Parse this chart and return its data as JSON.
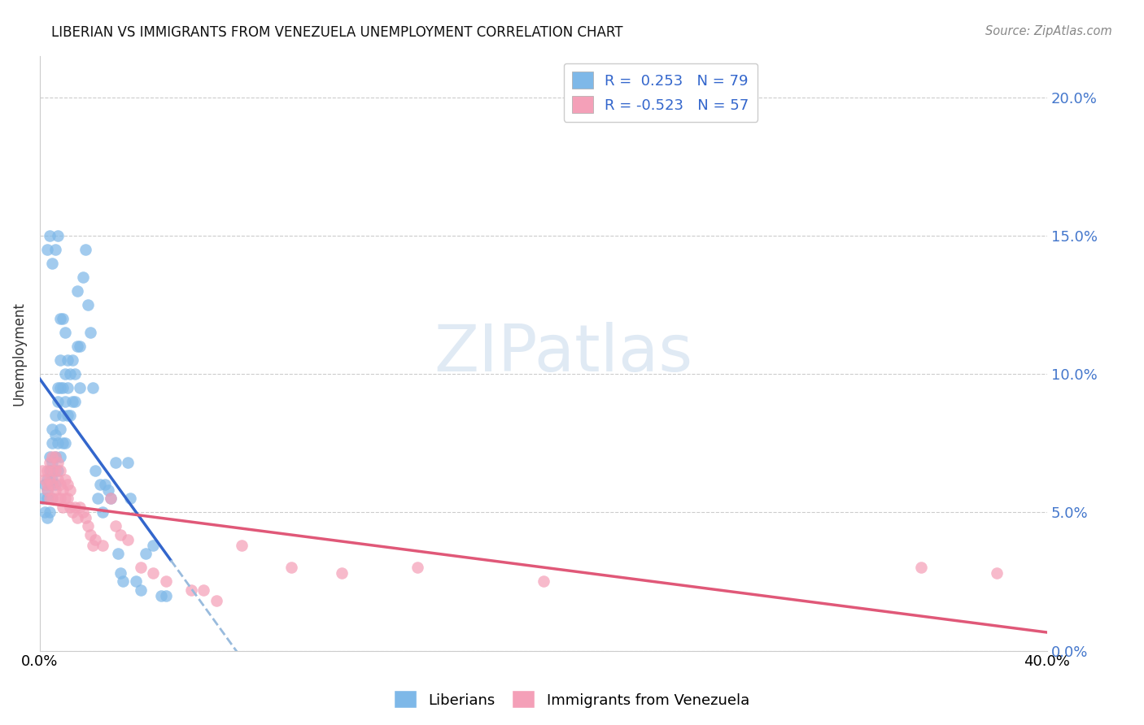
{
  "title": "LIBERIAN VS IMMIGRANTS FROM VENEZUELA UNEMPLOYMENT CORRELATION CHART",
  "source": "Source: ZipAtlas.com",
  "ylabel": "Unemployment",
  "xlim": [
    0.0,
    0.4
  ],
  "ylim": [
    0.0,
    0.215
  ],
  "yticks": [
    0.0,
    0.05,
    0.1,
    0.15,
    0.2
  ],
  "xticks": [
    0.0,
    0.1,
    0.2,
    0.3,
    0.4
  ],
  "blue_R": 0.253,
  "blue_N": 79,
  "pink_R": -0.523,
  "pink_N": 57,
  "blue_color": "#7eb8e8",
  "pink_color": "#f4a0b8",
  "blue_line_color": "#3366cc",
  "pink_line_color": "#e05878",
  "dashed_line_color": "#99bbdd",
  "legend_blue_label": "Liberians",
  "legend_pink_label": "Immigrants from Venezuela",
  "blue_x": [
    0.001,
    0.002,
    0.002,
    0.003,
    0.003,
    0.003,
    0.003,
    0.004,
    0.004,
    0.004,
    0.004,
    0.005,
    0.005,
    0.005,
    0.005,
    0.005,
    0.006,
    0.006,
    0.006,
    0.006,
    0.007,
    0.007,
    0.007,
    0.007,
    0.008,
    0.008,
    0.008,
    0.008,
    0.009,
    0.009,
    0.009,
    0.01,
    0.01,
    0.01,
    0.011,
    0.011,
    0.012,
    0.012,
    0.013,
    0.013,
    0.014,
    0.014,
    0.015,
    0.015,
    0.016,
    0.016,
    0.017,
    0.018,
    0.019,
    0.02,
    0.021,
    0.022,
    0.023,
    0.024,
    0.025,
    0.026,
    0.027,
    0.028,
    0.03,
    0.031,
    0.032,
    0.033,
    0.035,
    0.036,
    0.038,
    0.04,
    0.042,
    0.045,
    0.048,
    0.05,
    0.003,
    0.004,
    0.005,
    0.006,
    0.007,
    0.008,
    0.009,
    0.01,
    0.011
  ],
  "blue_y": [
    0.055,
    0.05,
    0.06,
    0.048,
    0.055,
    0.062,
    0.058,
    0.05,
    0.06,
    0.065,
    0.07,
    0.055,
    0.062,
    0.068,
    0.075,
    0.08,
    0.06,
    0.07,
    0.078,
    0.085,
    0.065,
    0.075,
    0.09,
    0.095,
    0.07,
    0.08,
    0.095,
    0.105,
    0.075,
    0.085,
    0.095,
    0.075,
    0.09,
    0.1,
    0.085,
    0.095,
    0.085,
    0.1,
    0.09,
    0.105,
    0.09,
    0.1,
    0.11,
    0.13,
    0.095,
    0.11,
    0.135,
    0.145,
    0.125,
    0.115,
    0.095,
    0.065,
    0.055,
    0.06,
    0.05,
    0.06,
    0.058,
    0.055,
    0.068,
    0.035,
    0.028,
    0.025,
    0.068,
    0.055,
    0.025,
    0.022,
    0.035,
    0.038,
    0.02,
    0.02,
    0.145,
    0.15,
    0.14,
    0.145,
    0.15,
    0.12,
    0.12,
    0.115,
    0.105
  ],
  "pink_x": [
    0.001,
    0.002,
    0.003,
    0.003,
    0.003,
    0.004,
    0.004,
    0.004,
    0.005,
    0.005,
    0.005,
    0.005,
    0.006,
    0.006,
    0.006,
    0.007,
    0.007,
    0.007,
    0.008,
    0.008,
    0.008,
    0.009,
    0.009,
    0.01,
    0.01,
    0.011,
    0.011,
    0.012,
    0.012,
    0.013,
    0.014,
    0.015,
    0.016,
    0.017,
    0.018,
    0.019,
    0.02,
    0.021,
    0.022,
    0.025,
    0.028,
    0.03,
    0.032,
    0.035,
    0.04,
    0.045,
    0.05,
    0.06,
    0.065,
    0.07,
    0.08,
    0.1,
    0.12,
    0.15,
    0.2,
    0.35,
    0.38
  ],
  "pink_y": [
    0.065,
    0.062,
    0.058,
    0.065,
    0.06,
    0.055,
    0.062,
    0.068,
    0.055,
    0.06,
    0.065,
    0.07,
    0.058,
    0.065,
    0.07,
    0.055,
    0.062,
    0.068,
    0.055,
    0.06,
    0.065,
    0.052,
    0.058,
    0.055,
    0.062,
    0.055,
    0.06,
    0.052,
    0.058,
    0.05,
    0.052,
    0.048,
    0.052,
    0.05,
    0.048,
    0.045,
    0.042,
    0.038,
    0.04,
    0.038,
    0.055,
    0.045,
    0.042,
    0.04,
    0.03,
    0.028,
    0.025,
    0.022,
    0.022,
    0.018,
    0.038,
    0.03,
    0.028,
    0.03,
    0.025,
    0.03,
    0.028
  ]
}
